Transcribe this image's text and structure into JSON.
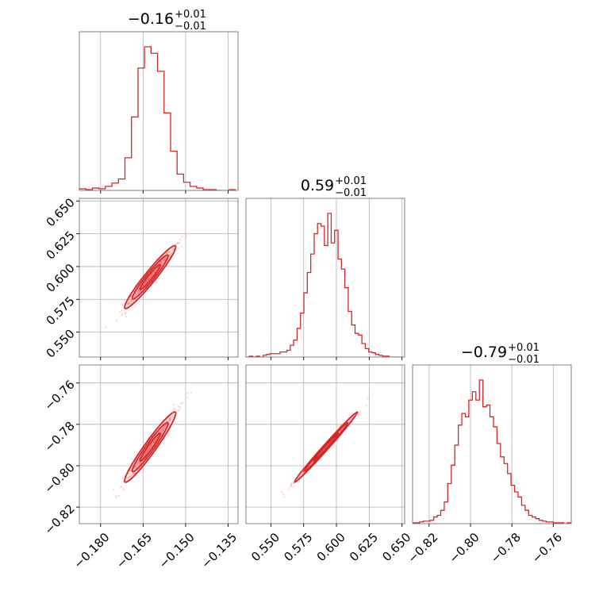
{
  "chart_data": {
    "type": "corner",
    "color": "#d62728",
    "grid": true,
    "parameters": [
      {
        "title": {
          "median": "−0.16",
          "upper": "+0.01",
          "lower": "−0.01"
        },
        "range": [
          -0.1875,
          -0.1315
        ],
        "ticks": [
          -0.18,
          -0.165,
          -0.15,
          -0.135
        ],
        "tick_labels": [
          "−0.180",
          "−0.165",
          "−0.150",
          "−0.135"
        ]
      },
      {
        "title": {
          "median": "0.59",
          "upper": "+0.01",
          "lower": "−0.01"
        },
        "range": [
          0.531,
          0.652
        ],
        "ticks": [
          0.55,
          0.575,
          0.6,
          0.625,
          0.65
        ],
        "tick_labels": [
          "0.550",
          "0.575",
          "0.600",
          "0.625",
          "0.650"
        ]
      },
      {
        "title": {
          "median": "−0.79",
          "upper": "+0.01",
          "lower": "−0.01"
        },
        "range": [
          -0.828,
          -0.7513
        ],
        "ticks": [
          -0.82,
          -0.8,
          -0.78,
          -0.76
        ],
        "tick_labels": [
          "−0.82",
          "−0.80",
          "−0.78",
          "−0.76"
        ]
      }
    ],
    "histograms": [
      {
        "bin_edges": [
          -0.1875,
          -0.1852,
          -0.1829,
          -0.1806,
          -0.1783,
          -0.176,
          -0.1737,
          -0.1714,
          -0.1691,
          -0.1668,
          -0.1645,
          -0.1622,
          -0.1599,
          -0.1576,
          -0.1553,
          -0.153,
          -0.1507,
          -0.1484,
          -0.1461,
          -0.1438,
          -0.1415,
          -0.1392,
          -0.1369,
          -0.1346,
          -0.1323
        ],
        "counts": [
          2,
          1,
          3,
          2,
          5,
          9,
          14,
          40,
          90,
          150,
          176,
          168,
          146,
          95,
          48,
          20,
          10,
          5,
          3,
          1,
          1,
          0,
          0,
          1
        ]
      },
      {
        "bin_edges": [
          0.531,
          0.5336,
          0.5362,
          0.5388,
          0.5414,
          0.544,
          0.5466,
          0.5492,
          0.5518,
          0.5544,
          0.557,
          0.5596,
          0.5622,
          0.5648,
          0.5674,
          0.57,
          0.5726,
          0.5752,
          0.5778,
          0.5804,
          0.583,
          0.5856,
          0.5882,
          0.5908,
          0.5934,
          0.596,
          0.5986,
          0.6012,
          0.6038,
          0.6064,
          0.609,
          0.6116,
          0.6142,
          0.6168,
          0.6194,
          0.622,
          0.6246,
          0.6272,
          0.6298,
          0.6324,
          0.635,
          0.6376,
          0.6402,
          0.6428,
          0.6454,
          0.648,
          0.6506
        ],
        "counts": [
          0,
          1,
          0,
          1,
          0,
          2,
          3,
          4,
          4,
          4,
          6,
          6,
          8,
          14,
          20,
          34,
          52,
          76,
          100,
          122,
          146,
          158,
          155,
          132,
          170,
          135,
          150,
          116,
          104,
          82,
          54,
          38,
          28,
          26,
          16,
          10,
          6,
          5,
          3,
          2,
          1,
          1,
          0,
          0,
          0,
          0
        ]
      },
      {
        "bin_edges": [
          -0.828,
          -0.8263,
          -0.8246,
          -0.8229,
          -0.8212,
          -0.8195,
          -0.8178,
          -0.8161,
          -0.8144,
          -0.8127,
          -0.811,
          -0.8093,
          -0.8076,
          -0.8059,
          -0.8042,
          -0.8025,
          -0.8008,
          -0.7991,
          -0.7974,
          -0.7957,
          -0.794,
          -0.7923,
          -0.7906,
          -0.7889,
          -0.7872,
          -0.7855,
          -0.7838,
          -0.7821,
          -0.7804,
          -0.7787,
          -0.777,
          -0.7753,
          -0.7736,
          -0.7719,
          -0.7702,
          -0.7685,
          -0.7668,
          -0.7651,
          -0.7634,
          -0.7617,
          -0.76,
          -0.7583,
          -0.7566,
          -0.7549,
          -0.7532,
          -0.7515
        ],
        "counts": [
          1,
          1,
          2,
          3,
          3,
          4,
          8,
          10,
          16,
          26,
          48,
          70,
          94,
          118,
          132,
          128,
          148,
          158,
          148,
          172,
          140,
          142,
          128,
          116,
          96,
          80,
          72,
          60,
          46,
          38,
          32,
          22,
          16,
          10,
          8,
          6,
          4,
          3,
          2,
          2,
          1,
          1,
          1,
          0,
          1
        ]
      }
    ],
    "correlations": [
      {
        "pair": [
          0,
          1
        ],
        "x_center": -0.1625,
        "y_center": 0.592,
        "x_sd": 0.0045,
        "y_sd": 0.012,
        "rho": 0.97
      },
      {
        "pair": [
          0,
          2
        ],
        "x_center": -0.1625,
        "y_center": -0.791,
        "x_sd": 0.0045,
        "y_sd": 0.0085,
        "rho": 0.97
      },
      {
        "pair": [
          1,
          2
        ],
        "x_center": 0.592,
        "y_center": -0.791,
        "x_sd": 0.012,
        "y_sd": 0.0085,
        "rho": 0.995
      }
    ]
  }
}
